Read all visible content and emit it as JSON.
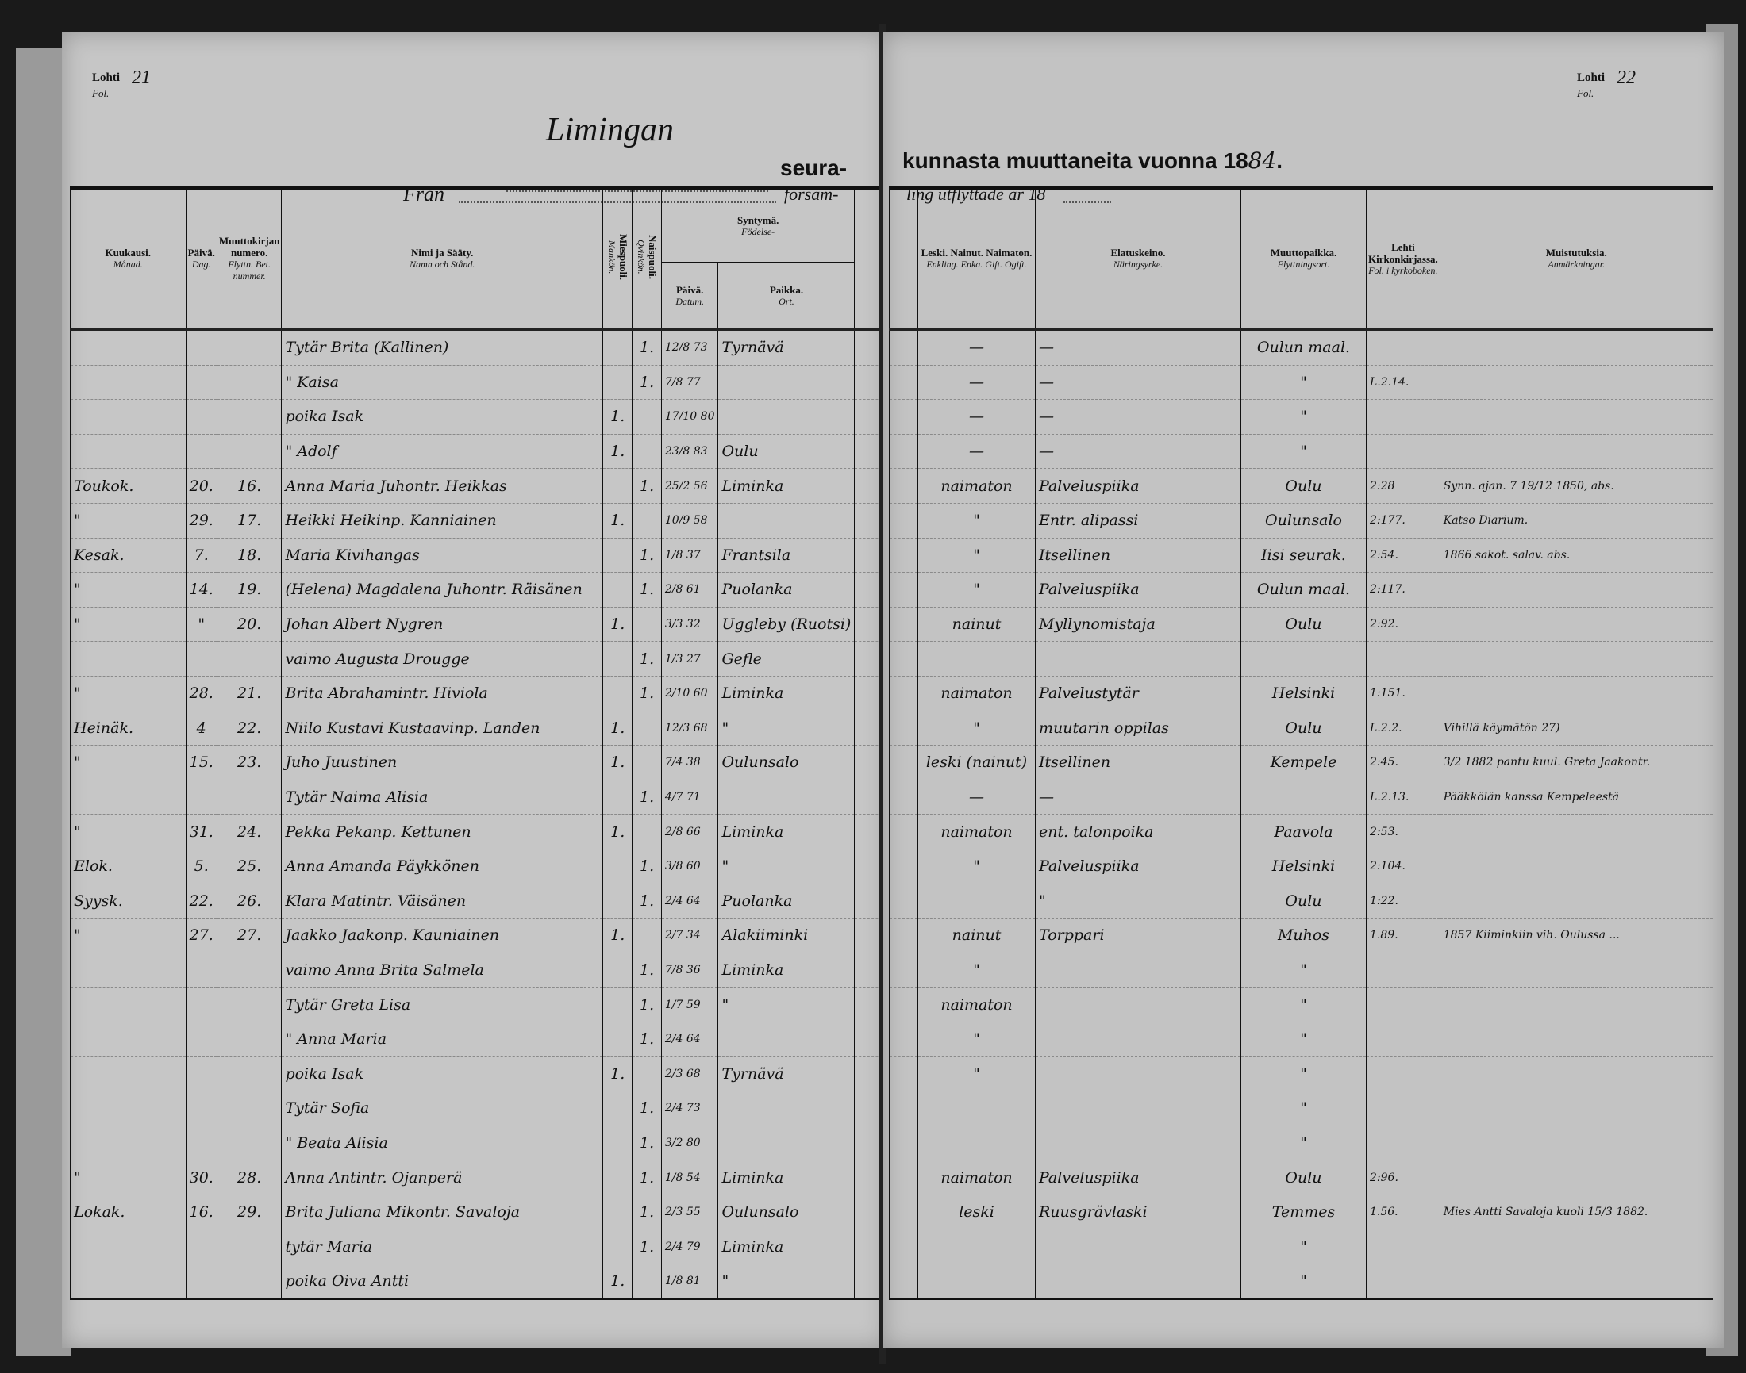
{
  "left_page": {
    "folio_label": "Lohti",
    "folio_label_sv": "Fol.",
    "folio_number": "21",
    "parish_handwritten": "Limingan",
    "title_part1": "seura-",
    "from_label": "Från",
    "from_suffix": "försam-"
  },
  "right_page": {
    "folio_label": "Lohti",
    "folio_label_sv": "Fol.",
    "folio_number": "22",
    "title_part2": "kunnasta muuttaneita vuonna 18",
    "year_handwritten": "84",
    "title_end": ".",
    "subtitle": "ling utflyttade år 18"
  },
  "columns": {
    "month": {
      "fi": "Kuukausi.",
      "sv": "Månad."
    },
    "day": {
      "fi": "Päivä.",
      "sv": "Dag."
    },
    "cert_no": {
      "fi": "Muuttokirjan numero.",
      "sv": "Flyttn. Bet. nummer."
    },
    "name": {
      "fi": "Nimi ja Sääty.",
      "sv": "Namn och Stånd."
    },
    "male": {
      "fi": "Miespuoli.",
      "sv": "Mankön."
    },
    "female": {
      "fi": "Naispuoli.",
      "sv": "Qvinkön."
    },
    "birth": {
      "fi": "Syntymä.",
      "sv": "Födelse-"
    },
    "birth_date": {
      "fi": "Päivä.",
      "sv": "Datum."
    },
    "birth_place": {
      "fi": "Paikka.",
      "sv": "Ort."
    },
    "marital": {
      "fi": "Leski. Nainut. Naimaton.",
      "sv": "Enkling. Enka. Gift. Ogift."
    },
    "occupation": {
      "fi": "Elatuskeino.",
      "sv": "Näringsyrke."
    },
    "destination": {
      "fi": "Muuttopaikka.",
      "sv": "Flyttningsort."
    },
    "folio": {
      "fi": "Lehti Kirkonkirjassa.",
      "sv": "Fol. i kyrkoboken."
    },
    "remarks": {
      "fi": "Muistutuksia.",
      "sv": "Anmärkningar."
    }
  },
  "rows": [
    {
      "month": "",
      "day": "",
      "no": "",
      "name": "Tytär Brita (Kallinen)",
      "m": "",
      "f": "1.",
      "date": "12/8 73",
      "place": "Tyrnävä",
      "marital": "—",
      "occ": "—",
      "dest": "Oulun maal.",
      "folio": "",
      "remarks": ""
    },
    {
      "month": "",
      "day": "",
      "no": "",
      "name": "\" Kaisa",
      "m": "",
      "f": "1.",
      "date": "7/8 77",
      "place": "",
      "marital": "—",
      "occ": "—",
      "dest": "\"",
      "folio": "L.2.14.",
      "remarks": ""
    },
    {
      "month": "",
      "day": "",
      "no": "",
      "name": "poika Isak",
      "m": "1.",
      "f": "",
      "date": "17/10 80",
      "place": "",
      "marital": "—",
      "occ": "—",
      "dest": "\"",
      "folio": "",
      "remarks": ""
    },
    {
      "month": "",
      "day": "",
      "no": "",
      "name": "\" Adolf",
      "m": "1.",
      "f": "",
      "date": "23/8 83",
      "place": "Oulu",
      "marital": "—",
      "occ": "—",
      "dest": "\"",
      "folio": "",
      "remarks": ""
    },
    {
      "month": "Toukok.",
      "day": "20.",
      "no": "16.",
      "name": "Anna Maria Juhontr. Heikkas",
      "m": "",
      "f": "1.",
      "date": "25/2 56",
      "place": "Liminka",
      "marital": "naimaton",
      "occ": "Palveluspiika",
      "dest": "Oulu",
      "folio": "2:28",
      "remarks": "Synn. ajan. 7 19/12 1850, abs."
    },
    {
      "month": "\"",
      "day": "29.",
      "no": "17.",
      "name": "Heikki Heikinp. Kanniainen",
      "m": "1.",
      "f": "",
      "date": "10/9 58",
      "place": "",
      "marital": "\"",
      "occ": "Entr. alipassi",
      "dest": "Oulunsalo",
      "folio": "2:177.",
      "remarks": "Katso Diarium."
    },
    {
      "month": "Kesak.",
      "day": "7.",
      "no": "18.",
      "name": "Maria Kivihangas",
      "m": "",
      "f": "1.",
      "date": "1/8 37",
      "place": "Frantsila",
      "marital": "\"",
      "occ": "Itsellinen",
      "dest": "Iisi seurak.",
      "folio": "2:54.",
      "remarks": "1866 sakot. salav. abs."
    },
    {
      "month": "\"",
      "day": "14.",
      "no": "19.",
      "name": "(Helena) Magdalena Juhontr. Räisänen",
      "m": "",
      "f": "1.",
      "date": "2/8 61",
      "place": "Puolanka",
      "marital": "\"",
      "occ": "Palveluspiika",
      "dest": "Oulun maal.",
      "folio": "2:117.",
      "remarks": ""
    },
    {
      "month": "\"",
      "day": "\"",
      "no": "20.",
      "name": "Johan Albert Nygren",
      "m": "1.",
      "f": "",
      "date": "3/3 32",
      "place": "Uggleby (Ruotsi)",
      "marital": "nainut",
      "occ": "Myllynomistaja",
      "dest": "Oulu",
      "folio": "2:92.",
      "remarks": ""
    },
    {
      "month": "",
      "day": "",
      "no": "",
      "name": "vaimo Augusta Drougge",
      "m": "",
      "f": "1.",
      "date": "1/3 27",
      "place": "Gefle",
      "marital": "",
      "occ": "",
      "dest": "",
      "folio": "",
      "remarks": ""
    },
    {
      "month": "\"",
      "day": "28.",
      "no": "21.",
      "name": "Brita Abrahamintr. Hiviola",
      "m": "",
      "f": "1.",
      "date": "2/10 60",
      "place": "Liminka",
      "marital": "naimaton",
      "occ": "Palvelustytär",
      "dest": "Helsinki",
      "folio": "1:151.",
      "remarks": ""
    },
    {
      "month": "Heinäk.",
      "day": "4",
      "no": "22.",
      "name": "Niilo Kustavi Kustaavinp. Landen",
      "m": "1.",
      "f": "",
      "date": "12/3 68",
      "place": "\"",
      "marital": "\"",
      "occ": "muutarin oppilas",
      "dest": "Oulu",
      "folio": "L.2.2.",
      "remarks": "Vihillä käymätön 27)"
    },
    {
      "month": "\"",
      "day": "15.",
      "no": "23.",
      "name": "Juho Juustinen",
      "m": "1.",
      "f": "",
      "date": "7/4 38",
      "place": "Oulunsalo",
      "marital": "leski (nainut)",
      "occ": "Itsellinen",
      "dest": "Kempele",
      "folio": "2:45.",
      "remarks": "3/2 1882 pantu kuul. Greta Jaakontr."
    },
    {
      "month": "",
      "day": "",
      "no": "",
      "name": "Tytär Naima Alisia",
      "m": "",
      "f": "1.",
      "date": "4/7 71",
      "place": "",
      "marital": "—",
      "occ": "—",
      "dest": "",
      "folio": "L.2.13.",
      "remarks": "Pääkkölän kanssa Kempeleestä"
    },
    {
      "month": "\"",
      "day": "31.",
      "no": "24.",
      "name": "Pekka Pekanp. Kettunen",
      "m": "1.",
      "f": "",
      "date": "2/8 66",
      "place": "Liminka",
      "marital": "naimaton",
      "occ": "ent. talonpoika",
      "dest": "Paavola",
      "folio": "2:53.",
      "remarks": ""
    },
    {
      "month": "Elok.",
      "day": "5.",
      "no": "25.",
      "name": "Anna Amanda Päykkönen",
      "m": "",
      "f": "1.",
      "date": "3/8 60",
      "place": "\"",
      "marital": "\"",
      "occ": "Palveluspiika",
      "dest": "Helsinki",
      "folio": "2:104.",
      "remarks": ""
    },
    {
      "month": "Syysk.",
      "day": "22.",
      "no": "26.",
      "name": "Klara Matintr. Väisänen",
      "m": "",
      "f": "1.",
      "date": "2/4 64",
      "place": "Puolanka",
      "marital": "",
      "occ": "\"",
      "dest": "Oulu",
      "folio": "1:22.",
      "remarks": ""
    },
    {
      "month": "\"",
      "day": "27.",
      "no": "27.",
      "name": "Jaakko Jaakonp. Kauniainen",
      "m": "1.",
      "f": "",
      "date": "2/7 34",
      "place": "Alakiiminki",
      "marital": "nainut",
      "occ": "Torppari",
      "dest": "Muhos",
      "folio": "1.89.",
      "remarks": "1857 Kiiminkiin vih. Oulussa ..."
    },
    {
      "month": "",
      "day": "",
      "no": "",
      "name": "vaimo Anna Brita Salmela",
      "m": "",
      "f": "1.",
      "date": "7/8 36",
      "place": "Liminka",
      "marital": "\"",
      "occ": "",
      "dest": "\"",
      "folio": "",
      "remarks": ""
    },
    {
      "month": "",
      "day": "",
      "no": "",
      "name": "Tytär Greta Lisa",
      "m": "",
      "f": "1.",
      "date": "1/7 59",
      "place": "\"",
      "marital": "naimaton",
      "occ": "",
      "dest": "\"",
      "folio": "",
      "remarks": ""
    },
    {
      "month": "",
      "day": "",
      "no": "",
      "name": "\" Anna Maria",
      "m": "",
      "f": "1.",
      "date": "2/4 64",
      "place": "",
      "marital": "\"",
      "occ": "",
      "dest": "\"",
      "folio": "",
      "remarks": ""
    },
    {
      "month": "",
      "day": "",
      "no": "",
      "name": "poika Isak",
      "m": "1.",
      "f": "",
      "date": "2/3 68",
      "place": "Tyrnävä",
      "marital": "\"",
      "occ": "",
      "dest": "\"",
      "folio": "",
      "remarks": ""
    },
    {
      "month": "",
      "day": "",
      "no": "",
      "name": "Tytär Sofia",
      "m": "",
      "f": "1.",
      "date": "2/4 73",
      "place": "",
      "marital": "",
      "occ": "",
      "dest": "\"",
      "folio": "",
      "remarks": ""
    },
    {
      "month": "",
      "day": "",
      "no": "",
      "name": "\" Beata Alisia",
      "m": "",
      "f": "1.",
      "date": "3/2 80",
      "place": "",
      "marital": "",
      "occ": "",
      "dest": "\"",
      "folio": "",
      "remarks": ""
    },
    {
      "month": "\"",
      "day": "30.",
      "no": "28.",
      "name": "Anna Antintr. Ojanperä",
      "m": "",
      "f": "1.",
      "date": "1/8 54",
      "place": "Liminka",
      "marital": "naimaton",
      "occ": "Palveluspiika",
      "dest": "Oulu",
      "folio": "2:96.",
      "remarks": ""
    },
    {
      "month": "Lokak.",
      "day": "16.",
      "no": "29.",
      "name": "Brita Juliana Mikontr. Savaloja",
      "m": "",
      "f": "1.",
      "date": "2/3 55",
      "place": "Oulunsalo",
      "marital": "leski",
      "occ": "Ruusgrävlaski",
      "dest": "Temmes",
      "folio": "1.56.",
      "remarks": "Mies Antti Savaloja kuoli 15/3 1882."
    },
    {
      "month": "",
      "day": "",
      "no": "",
      "name": "tytär Maria",
      "m": "",
      "f": "1.",
      "date": "2/4 79",
      "place": "Liminka",
      "marital": "",
      "occ": "",
      "dest": "\"",
      "folio": "",
      "remarks": ""
    },
    {
      "month": "",
      "day": "",
      "no": "",
      "name": "poika Oiva Antti",
      "m": "1.",
      "f": "",
      "date": "1/8 81",
      "place": "\"",
      "marital": "",
      "occ": "",
      "dest": "\"",
      "folio": "",
      "remarks": ""
    }
  ]
}
